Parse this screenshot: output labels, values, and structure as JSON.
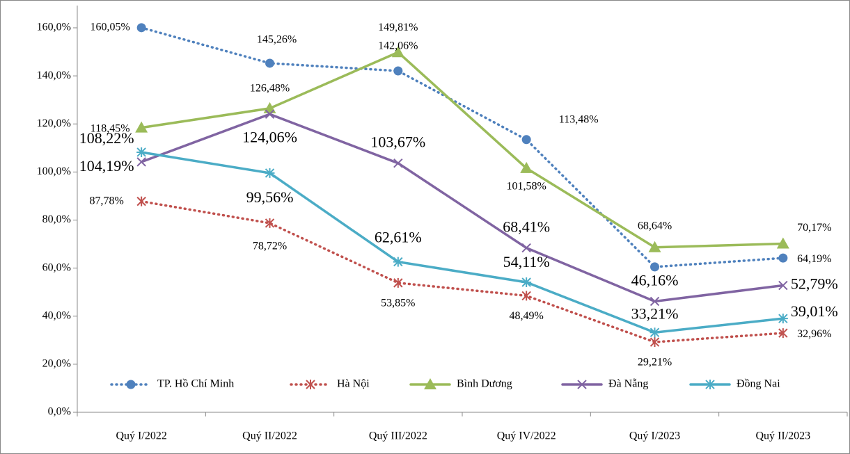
{
  "chart_data": {
    "type": "line",
    "categories": [
      "Quý I/2022",
      "Quý II/2022",
      "Quý III/2022",
      "Quý IV/2022",
      "Quý I/2023",
      "Quý II/2023"
    ],
    "ylim": [
      0,
      160
    ],
    "yticks": [
      {
        "value": 0,
        "label": "0,0%"
      },
      {
        "value": 20,
        "label": "20,0%"
      },
      {
        "value": 40,
        "label": "40,0%"
      },
      {
        "value": 60,
        "label": "60,0%"
      },
      {
        "value": 80,
        "label": "80,0%"
      },
      {
        "value": 100,
        "label": "100,0%"
      },
      {
        "value": 120,
        "label": "120,0%"
      },
      {
        "value": 140,
        "label": "140,0%"
      },
      {
        "value": 160,
        "label": "160,0%"
      }
    ],
    "legend": "bottom",
    "series": [
      {
        "name": "TP. Hồ Chí Minh",
        "color": "#4f81bd",
        "dash": "dotted",
        "marker": "circle",
        "values": [
          160.05,
          145.26,
          142.06,
          113.48,
          60.5,
          64.19
        ],
        "value_labels": [
          "160,05%",
          "145,26%",
          "142,06%",
          "113,48%",
          null,
          "64,19%"
        ]
      },
      {
        "name": "Hà Nội",
        "color": "#c0504d",
        "dash": "dotted",
        "marker": "star",
        "values": [
          87.78,
          78.72,
          53.85,
          48.49,
          29.21,
          32.96
        ],
        "value_labels": [
          "87,78%",
          "78,72%",
          "53,85%",
          "48,49%",
          "29,21%",
          "32,96%"
        ]
      },
      {
        "name": "Bình Dương",
        "color": "#9bbb59",
        "dash": "solid",
        "marker": "triangle",
        "values": [
          118.45,
          126.48,
          149.81,
          101.58,
          68.64,
          70.17
        ],
        "value_labels": [
          "118,45%",
          "126,48%",
          "149,81%",
          "101,58%",
          "68,64%",
          "70,17%"
        ]
      },
      {
        "name": "Đà Nẵng",
        "color": "#8064a2",
        "dash": "solid",
        "marker": "x",
        "values": [
          104.19,
          124.06,
          103.67,
          68.41,
          46.16,
          52.79
        ],
        "value_labels": [
          "104,19%",
          "124,06%",
          "103,67%",
          "68,41%",
          "46,16%",
          "52,79%"
        ]
      },
      {
        "name": "Đồng Nai",
        "color": "#4bacc6",
        "dash": "solid",
        "marker": "asterisk",
        "values": [
          108.22,
          99.56,
          62.61,
          54.11,
          33.21,
          39.01
        ],
        "value_labels": [
          "108,22%",
          "99,56%",
          "62,61%",
          "54,11%",
          "33,21%",
          "39,01%"
        ]
      }
    ]
  }
}
